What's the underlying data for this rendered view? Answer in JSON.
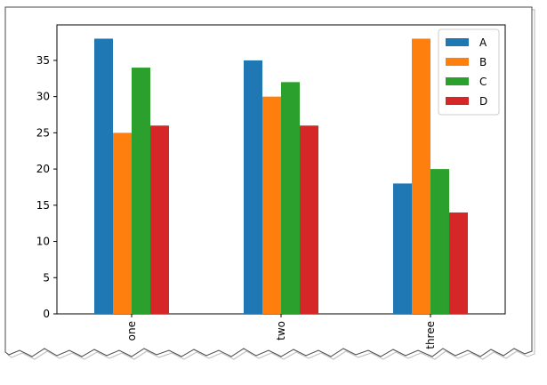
{
  "chart_data": {
    "type": "bar",
    "categories": [
      "one",
      "two",
      "three"
    ],
    "series": [
      {
        "name": "A",
        "values": [
          38,
          35,
          18
        ],
        "color": "#1f77b4"
      },
      {
        "name": "B",
        "values": [
          25,
          30,
          38
        ],
        "color": "#ff7f0e"
      },
      {
        "name": "C",
        "values": [
          34,
          32,
          20
        ],
        "color": "#2ca02c"
      },
      {
        "name": "D",
        "values": [
          26,
          26,
          14
        ],
        "color": "#d62728"
      }
    ],
    "y_ticks": [
      0,
      5,
      10,
      15,
      20,
      25,
      30,
      35
    ],
    "ylim": [
      0,
      39.9
    ],
    "title": "",
    "xlabel": "",
    "ylabel": "",
    "grid": false,
    "legend_position": "top-right",
    "x_tick_rotation": "vertical"
  }
}
